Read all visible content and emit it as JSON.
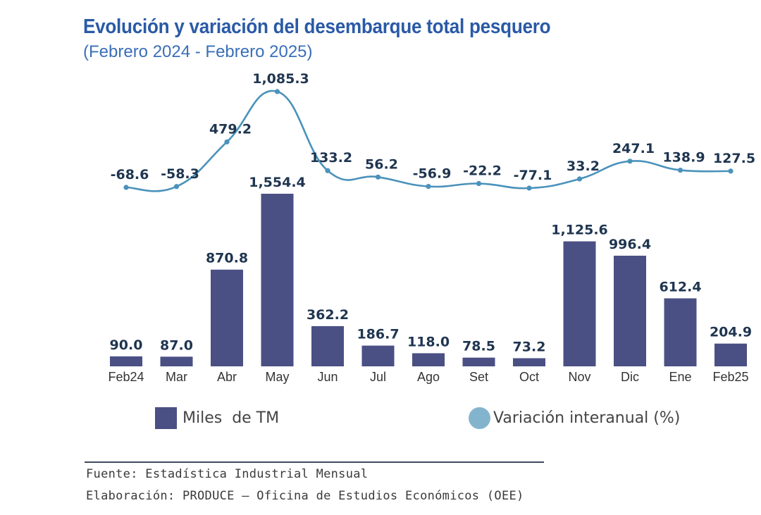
{
  "chart_data": {
    "type": "bar+line",
    "title": "Evolución y variación del desembarque total pesquero",
    "subtitle": "(Febrero 2024 - Febrero 2025)",
    "categories": [
      "Feb24",
      "Mar",
      "Abr",
      "May",
      "Jun",
      "Jul",
      "Ago",
      "Set",
      "Oct",
      "Nov",
      "Dic",
      "Ene",
      "Feb25"
    ],
    "series": [
      {
        "name": "Miles  de TM",
        "kind": "bar",
        "values": [
          90.0,
          87.0,
          870.8,
          1554.4,
          362.2,
          186.7,
          118.0,
          78.5,
          73.2,
          1125.6,
          996.4,
          612.4,
          204.9
        ],
        "labels": [
          "90.0",
          "87.0",
          "870.8",
          "1,554.4",
          "362.2",
          "186.7",
          "118.0",
          "78.5",
          "73.2",
          "1,125.6",
          "996.4",
          "612.4",
          "204.9"
        ]
      },
      {
        "name": "Variación interanual (%)",
        "kind": "line",
        "values": [
          -68.6,
          -58.3,
          479.2,
          1085.3,
          133.2,
          56.2,
          -56.9,
          -22.2,
          -77.1,
          33.2,
          247.1,
          138.9,
          127.5
        ],
        "labels": [
          "-68.6",
          "-58.3",
          "479.2",
          "1,085.3",
          "133.2",
          "56.2",
          "-56.9",
          "-22.2",
          "-77.1",
          "33.2",
          "247.1",
          "138.9",
          "127.5"
        ]
      }
    ],
    "bar_ylim": [
      0,
      1554.4
    ],
    "line_ylim": [
      -77.1,
      1085.3
    ],
    "legend_position": "bottom",
    "grid": false
  },
  "colors": {
    "bar": "#4a5084",
    "line": "#4a92bb",
    "legend_line_swatch": "#84b4cd",
    "title": "#2a5aa6"
  },
  "legend": {
    "bar_label": "Miles  de TM",
    "line_label": "Variación interanual (%)"
  },
  "footer": {
    "source": "Fuente: Estadística Industrial Mensual",
    "elaboration": "Elaboración: PRODUCE – Oficina de Estudios Económicos (OEE)"
  }
}
